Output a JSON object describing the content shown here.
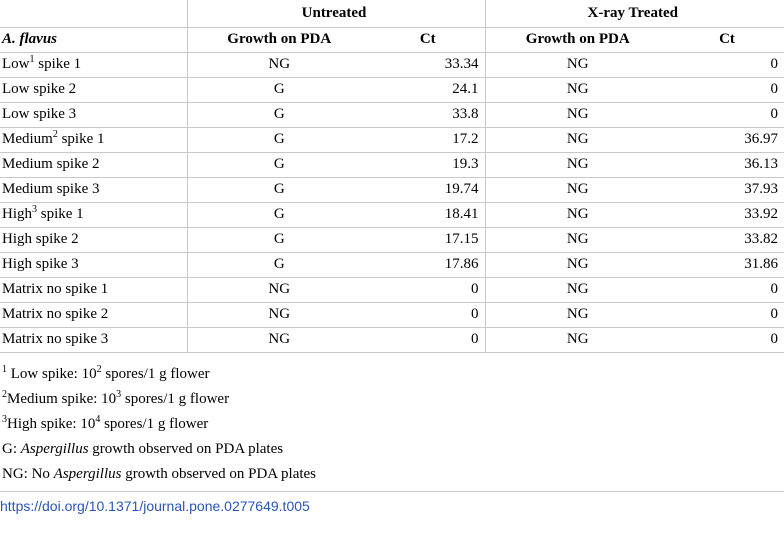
{
  "table": {
    "groups": {
      "untreated": "Untreated",
      "xray": "X-ray Treated"
    },
    "row_header": "A. flavus",
    "columns": {
      "growth": "Growth on PDA",
      "ct": "Ct"
    },
    "rows": [
      {
        "label": "Low",
        "sup": "1",
        "rest": " spike 1",
        "u_growth": "NG",
        "u_ct": "33.34",
        "x_growth": "NG",
        "x_ct": "0"
      },
      {
        "label": "Low spike 2",
        "sup": "",
        "rest": "",
        "u_growth": "G",
        "u_ct": "24.1",
        "x_growth": "NG",
        "x_ct": "0"
      },
      {
        "label": "Low spike 3",
        "sup": "",
        "rest": "",
        "u_growth": "G",
        "u_ct": "33.8",
        "x_growth": "NG",
        "x_ct": "0"
      },
      {
        "label": "Medium",
        "sup": "2",
        "rest": " spike 1",
        "u_growth": "G",
        "u_ct": "17.2",
        "x_growth": "NG",
        "x_ct": "36.97"
      },
      {
        "label": "Medium spike 2",
        "sup": "",
        "rest": "",
        "u_growth": "G",
        "u_ct": "19.3",
        "x_growth": "NG",
        "x_ct": "36.13"
      },
      {
        "label": "Medium spike 3",
        "sup": "",
        "rest": "",
        "u_growth": "G",
        "u_ct": "19.74",
        "x_growth": "NG",
        "x_ct": "37.93"
      },
      {
        "label": "High",
        "sup": "3",
        "rest": " spike 1",
        "u_growth": "G",
        "u_ct": "18.41",
        "x_growth": "NG",
        "x_ct": "33.92"
      },
      {
        "label": "High spike 2",
        "sup": "",
        "rest": "",
        "u_growth": "G",
        "u_ct": "17.15",
        "x_growth": "NG",
        "x_ct": "33.82"
      },
      {
        "label": "High spike 3",
        "sup": "",
        "rest": "",
        "u_growth": "G",
        "u_ct": "17.86",
        "x_growth": "NG",
        "x_ct": "31.86"
      },
      {
        "label": "Matrix no spike 1",
        "sup": "",
        "rest": "",
        "u_growth": "NG",
        "u_ct": "0",
        "x_growth": "NG",
        "x_ct": "0"
      },
      {
        "label": "Matrix no spike 2",
        "sup": "",
        "rest": "",
        "u_growth": "NG",
        "u_ct": "0",
        "x_growth": "NG",
        "x_ct": "0"
      },
      {
        "label": "Matrix no spike 3",
        "sup": "",
        "rest": "",
        "u_growth": "NG",
        "u_ct": "0",
        "x_growth": "NG",
        "x_ct": "0"
      }
    ]
  },
  "footnotes": {
    "n1": {
      "mark": "1",
      "a": " Low spike: 10",
      "exp": "2",
      "b": " spores/1 g flower"
    },
    "n2": {
      "mark": "2",
      "a": "Medium spike: 10",
      "exp": "3",
      "b": " spores/1 g flower"
    },
    "n3": {
      "mark": "3",
      "a": "High spike: 10",
      "exp": "4",
      "b": " spores/1 g flower"
    },
    "g": {
      "a": "G: ",
      "em": "Aspergillus",
      "b": " growth observed on PDA plates"
    },
    "ng": {
      "a": "NG: No ",
      "em": "Aspergillus",
      "b": " growth observed on PDA plates"
    }
  },
  "doi": "https://doi.org/10.1371/journal.pone.0277649.t005",
  "colors": {
    "rule": "#c8c8c8",
    "link": "#2a56b5"
  }
}
